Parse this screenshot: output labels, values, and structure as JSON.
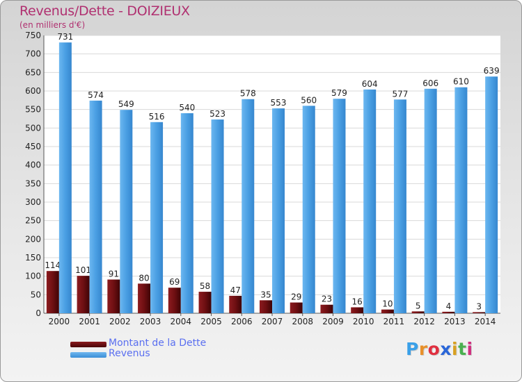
{
  "header": {
    "title": "Revenus/Dette - DOIZIEUX",
    "subtitle": "(en milliers d'€)"
  },
  "colors": {
    "dette": "#6e0f12",
    "revenus": "#4a9fe3",
    "title": "#b03070",
    "legend_text": "#5a6ff0"
  },
  "chart_data": {
    "type": "bar",
    "title": "Revenus/Dette - DOIZIEUX",
    "subtitle": "(en milliers d'€)",
    "categories": [
      "2000",
      "2001",
      "2002",
      "2003",
      "2004",
      "2005",
      "2006",
      "2007",
      "2008",
      "2009",
      "2010",
      "2011",
      "2012",
      "2013",
      "2014"
    ],
    "series": [
      {
        "name": "Montant de la Dette",
        "values": [
          114,
          101,
          91,
          80,
          69,
          58,
          47,
          35,
          29,
          23,
          16,
          10,
          5,
          4,
          3
        ],
        "color": "#6e0f12"
      },
      {
        "name": "Revenus",
        "values": [
          731,
          574,
          549,
          516,
          540,
          523,
          578,
          553,
          560,
          579,
          604,
          577,
          606,
          610,
          639
        ],
        "color": "#4a9fe3"
      }
    ],
    "ylim": [
      0,
      750
    ],
    "yticks": [
      0,
      50,
      100,
      150,
      200,
      250,
      300,
      350,
      400,
      450,
      500,
      550,
      600,
      650,
      700,
      750
    ],
    "grid": true,
    "legend": "bottom-left"
  },
  "legend": {
    "items": [
      {
        "label": "Montant de la Dette"
      },
      {
        "label": "Revenus"
      }
    ]
  },
  "logo": {
    "letters": [
      "P",
      "r",
      "o",
      "x",
      "i",
      "t",
      "i"
    ]
  }
}
